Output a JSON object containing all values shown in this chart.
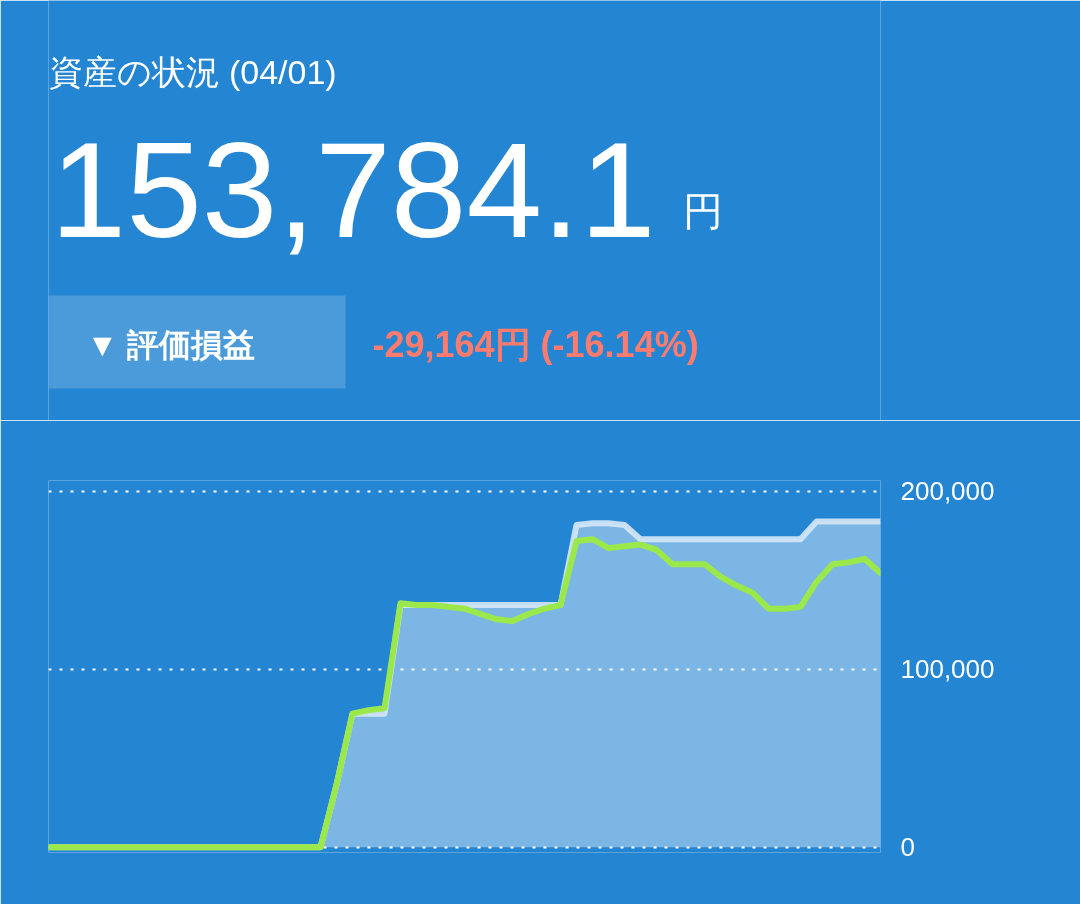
{
  "chart_data": {
    "type": "line",
    "title": "資産の状況 (04/01)",
    "annotations": [
      "153,784.1",
      "円",
      "▼ 評価損益",
      "-29,164円 (-16.14%)"
    ],
    "categories": [
      null,
      null,
      null,
      null,
      null,
      null,
      null,
      null,
      null,
      null,
      null,
      null,
      null,
      null,
      null,
      null,
      null,
      null,
      null,
      null,
      null,
      null,
      null,
      null,
      null,
      null,
      null,
      null,
      null,
      null,
      null,
      null,
      null,
      null,
      null,
      null,
      null,
      null,
      null,
      null,
      null,
      null,
      null,
      null,
      null,
      null,
      null,
      null,
      null,
      null,
      null,
      null,
      null
    ],
    "series": [
      {
        "type": "area",
        "color": "#d6e8f6",
        "values": [
          0,
          0,
          0,
          0,
          0,
          0,
          0,
          0,
          0,
          0,
          0,
          0,
          0,
          0,
          0,
          0,
          0,
          0,
          35000,
          75000,
          75000,
          75000,
          136000,
          136000,
          136000,
          136000,
          136000,
          136000,
          136000,
          136000,
          136000,
          136000,
          136000,
          181000,
          182000,
          182000,
          181000,
          173000,
          173000,
          173000,
          173000,
          173000,
          173000,
          173000,
          173000,
          173000,
          173000,
          173000,
          183000,
          183000,
          183000,
          183000,
          183000
        ]
      },
      {
        "color": "#9be84a",
        "values": [
          0,
          0,
          0,
          0,
          0,
          0,
          0,
          0,
          0,
          0,
          0,
          0,
          0,
          0,
          0,
          0,
          0,
          0,
          35000,
          75000,
          77000,
          78000,
          137000,
          136000,
          136000,
          135000,
          134000,
          131000,
          128000,
          127000,
          131000,
          134000,
          136000,
          172000,
          173000,
          168000,
          169000,
          170000,
          167000,
          159000,
          159000,
          159000,
          152000,
          147000,
          143000,
          134000,
          134000,
          135000,
          149000,
          159000,
          160000,
          162000,
          154000
        ]
      }
    ],
    "ylim": [
      -3000,
      206000
    ],
    "yticks": [
      {
        "value": 0,
        "label": "0"
      },
      {
        "value": 100000,
        "label": "100,000"
      },
      {
        "value": 200000,
        "label": "200,000"
      }
    ],
    "grid": "y",
    "tick_labels": "y"
  }
}
